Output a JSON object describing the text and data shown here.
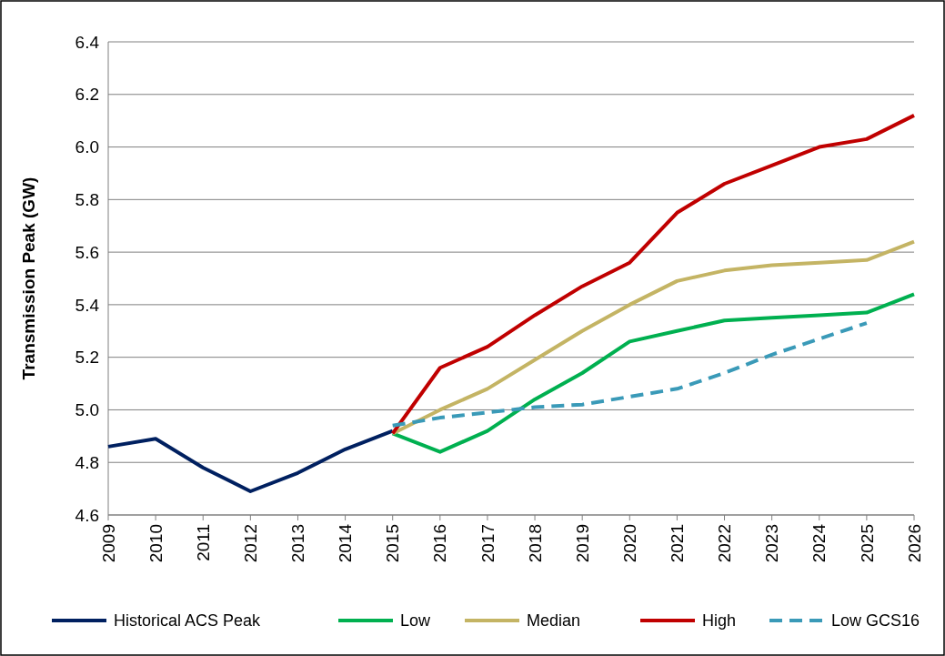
{
  "chart_data": {
    "type": "line",
    "ylabel": "Transmission Peak (GW)",
    "categories": [
      "2009",
      "2010",
      "2011",
      "2012",
      "2013",
      "2014",
      "2015",
      "2016",
      "2017",
      "2018",
      "2019",
      "2020",
      "2021",
      "2022",
      "2023",
      "2024",
      "2025",
      "2026"
    ],
    "ylim": [
      4.6,
      6.4
    ],
    "yticks": [
      {
        "value": 4.6,
        "label": "4.6"
      },
      {
        "value": 4.8,
        "label": "4.8"
      },
      {
        "value": 5.0,
        "label": "5.0"
      },
      {
        "value": 5.2,
        "label": "5.2"
      },
      {
        "value": 5.4,
        "label": "5.4"
      },
      {
        "value": 5.6,
        "label": "5.6"
      },
      {
        "value": 5.8,
        "label": "5.8"
      },
      {
        "value": 6.0,
        "label": "6.0"
      },
      {
        "value": 6.2,
        "label": "6.2"
      },
      {
        "value": 6.4,
        "label": "6.4"
      }
    ],
    "grid": "y",
    "legend": "bottom",
    "series": [
      {
        "name": "Historical ACS Peak",
        "color": "#002060",
        "line_style": "solid",
        "values": [
          4.86,
          4.89,
          4.78,
          4.69,
          4.76,
          4.85,
          4.92,
          null,
          null,
          null,
          null,
          null,
          null,
          null,
          null,
          null,
          null,
          null
        ]
      },
      {
        "name": "Low",
        "color": "#00b050",
        "line_style": "solid",
        "values": [
          null,
          null,
          null,
          null,
          null,
          null,
          4.91,
          4.84,
          4.92,
          5.04,
          5.14,
          5.26,
          5.3,
          5.34,
          5.35,
          5.36,
          5.37,
          5.44
        ]
      },
      {
        "name": "Median",
        "color": "#c4b464",
        "line_style": "solid",
        "values": [
          null,
          null,
          null,
          null,
          null,
          null,
          4.91,
          5.0,
          5.08,
          5.19,
          5.3,
          5.4,
          5.49,
          5.53,
          5.55,
          5.56,
          5.57,
          5.64
        ]
      },
      {
        "name": "High",
        "color": "#c00000",
        "line_style": "solid",
        "values": [
          null,
          null,
          null,
          null,
          null,
          null,
          4.91,
          5.16,
          5.24,
          5.36,
          5.47,
          5.56,
          5.75,
          5.86,
          5.93,
          6.0,
          6.03,
          6.12
        ]
      },
      {
        "name": "Low GCS16",
        "color": "#3a9ab8",
        "line_style": "dashed",
        "values": [
          null,
          null,
          null,
          null,
          null,
          null,
          4.94,
          4.97,
          4.99,
          5.01,
          5.02,
          5.05,
          5.08,
          5.14,
          5.21,
          5.27,
          5.33,
          null
        ]
      }
    ]
  }
}
